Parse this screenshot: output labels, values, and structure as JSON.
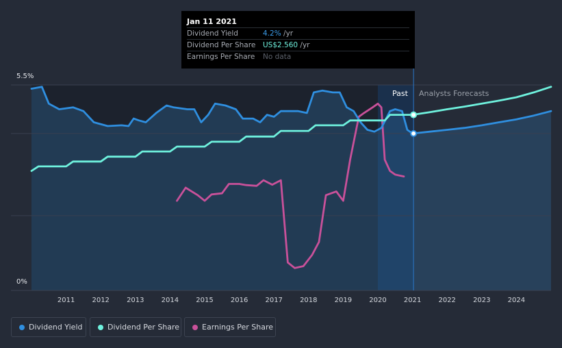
{
  "tooltip": {
    "date": "Jan 11 2021",
    "rows": [
      {
        "label": "Dividend Yield",
        "value": "4.2%",
        "unit": " /yr",
        "color": "#3b9be8"
      },
      {
        "label": "Dividend Per Share",
        "value": "US$2.560",
        "unit": " /yr",
        "color": "#6ff2de"
      },
      {
        "label": "Earnings Per Share",
        "value": "No data",
        "unit": "",
        "color": "#5c616b"
      }
    ]
  },
  "regions": {
    "past": "Past",
    "forecast": "Analysts Forecasts"
  },
  "legend": [
    {
      "label": "Dividend Yield",
      "color": "#2f8fe0"
    },
    {
      "label": "Dividend Per Share",
      "color": "#6ff2de"
    },
    {
      "label": "Earnings Per Share",
      "color": "#c9519a"
    }
  ],
  "chart_data": {
    "type": "line",
    "x_ticks": [
      "2011",
      "2012",
      "2013",
      "2014",
      "2015",
      "2016",
      "2017",
      "2018",
      "2019",
      "2020",
      "2021",
      "2022",
      "2023",
      "2024"
    ],
    "y_ticks": [
      "5.5%",
      "0%"
    ],
    "ylim": [
      0,
      5.5
    ],
    "xlim": [
      2010.0,
      2025.0
    ],
    "grid": true,
    "past_end": 2021.03,
    "series": [
      {
        "name": "Dividend Yield",
        "color": "#2f8fe0",
        "fill": true,
        "points": [
          [
            2010.0,
            5.4
          ],
          [
            2010.3,
            5.45
          ],
          [
            2010.5,
            5.0
          ],
          [
            2010.8,
            4.85
          ],
          [
            2011.2,
            4.9
          ],
          [
            2011.5,
            4.8
          ],
          [
            2011.8,
            4.5
          ],
          [
            2012.2,
            4.4
          ],
          [
            2012.6,
            4.42
          ],
          [
            2012.8,
            4.4
          ],
          [
            2012.95,
            4.6
          ],
          [
            2013.1,
            4.55
          ],
          [
            2013.3,
            4.5
          ],
          [
            2013.6,
            4.75
          ],
          [
            2013.9,
            4.95
          ],
          [
            2014.1,
            4.9
          ],
          [
            2014.5,
            4.85
          ],
          [
            2014.7,
            4.85
          ],
          [
            2014.9,
            4.5
          ],
          [
            2015.1,
            4.7
          ],
          [
            2015.3,
            5.0
          ],
          [
            2015.6,
            4.95
          ],
          [
            2015.9,
            4.85
          ],
          [
            2016.1,
            4.6
          ],
          [
            2016.4,
            4.6
          ],
          [
            2016.6,
            4.5
          ],
          [
            2016.8,
            4.7
          ],
          [
            2017.0,
            4.65
          ],
          [
            2017.2,
            4.8
          ],
          [
            2017.4,
            4.8
          ],
          [
            2017.7,
            4.8
          ],
          [
            2017.95,
            4.75
          ],
          [
            2018.15,
            5.3
          ],
          [
            2018.4,
            5.35
          ],
          [
            2018.7,
            5.3
          ],
          [
            2018.9,
            5.3
          ],
          [
            2019.1,
            4.9
          ],
          [
            2019.3,
            4.8
          ],
          [
            2019.5,
            4.5
          ],
          [
            2019.7,
            4.3
          ],
          [
            2019.9,
            4.25
          ],
          [
            2020.1,
            4.35
          ],
          [
            2020.35,
            4.8
          ],
          [
            2020.5,
            4.85
          ],
          [
            2020.7,
            4.8
          ],
          [
            2020.85,
            4.3
          ],
          [
            2021.0,
            4.2
          ],
          [
            2021.5,
            4.25
          ],
          [
            2022.0,
            4.3
          ],
          [
            2022.5,
            4.35
          ],
          [
            2023.0,
            4.42
          ],
          [
            2023.5,
            4.5
          ],
          [
            2024.0,
            4.58
          ],
          [
            2024.5,
            4.68
          ],
          [
            2025.0,
            4.8
          ]
        ]
      },
      {
        "name": "Dividend Per Share",
        "color": "#6ff2de",
        "fill": false,
        "points": [
          [
            2010.0,
            3.2
          ],
          [
            2010.2,
            3.32
          ],
          [
            2011.0,
            3.32
          ],
          [
            2011.2,
            3.45
          ],
          [
            2012.0,
            3.45
          ],
          [
            2012.2,
            3.58
          ],
          [
            2013.0,
            3.58
          ],
          [
            2013.2,
            3.72
          ],
          [
            2014.0,
            3.72
          ],
          [
            2014.2,
            3.85
          ],
          [
            2015.0,
            3.85
          ],
          [
            2015.2,
            3.98
          ],
          [
            2016.0,
            3.98
          ],
          [
            2016.2,
            4.12
          ],
          [
            2017.0,
            4.12
          ],
          [
            2017.2,
            4.27
          ],
          [
            2018.0,
            4.27
          ],
          [
            2018.2,
            4.42
          ],
          [
            2019.0,
            4.42
          ],
          [
            2019.2,
            4.55
          ],
          [
            2020.2,
            4.55
          ],
          [
            2020.35,
            4.7
          ],
          [
            2021.0,
            4.7
          ],
          [
            2021.5,
            4.77
          ],
          [
            2022.0,
            4.85
          ],
          [
            2022.5,
            4.92
          ],
          [
            2023.0,
            5.0
          ],
          [
            2023.5,
            5.08
          ],
          [
            2024.0,
            5.17
          ],
          [
            2024.5,
            5.3
          ],
          [
            2025.0,
            5.45
          ]
        ]
      },
      {
        "name": "Earnings Per Share",
        "color": "#c9519a",
        "fill": false,
        "points": [
          [
            2014.2,
            2.4
          ],
          [
            2014.45,
            2.75
          ],
          [
            2014.8,
            2.55
          ],
          [
            2015.0,
            2.4
          ],
          [
            2015.2,
            2.57
          ],
          [
            2015.5,
            2.6
          ],
          [
            2015.7,
            2.85
          ],
          [
            2016.0,
            2.85
          ],
          [
            2016.2,
            2.82
          ],
          [
            2016.5,
            2.8
          ],
          [
            2016.7,
            2.95
          ],
          [
            2016.95,
            2.83
          ],
          [
            2017.2,
            2.95
          ],
          [
            2017.4,
            0.75
          ],
          [
            2017.6,
            0.6
          ],
          [
            2017.85,
            0.65
          ],
          [
            2018.1,
            0.95
          ],
          [
            2018.3,
            1.3
          ],
          [
            2018.5,
            2.55
          ],
          [
            2018.8,
            2.65
          ],
          [
            2019.0,
            2.4
          ],
          [
            2019.2,
            3.5
          ],
          [
            2019.45,
            4.65
          ],
          [
            2019.6,
            4.75
          ],
          [
            2019.85,
            4.9
          ],
          [
            2020.0,
            5.0
          ],
          [
            2020.1,
            4.9
          ],
          [
            2020.2,
            3.5
          ],
          [
            2020.35,
            3.2
          ],
          [
            2020.5,
            3.1
          ],
          [
            2020.75,
            3.05
          ]
        ]
      }
    ]
  }
}
